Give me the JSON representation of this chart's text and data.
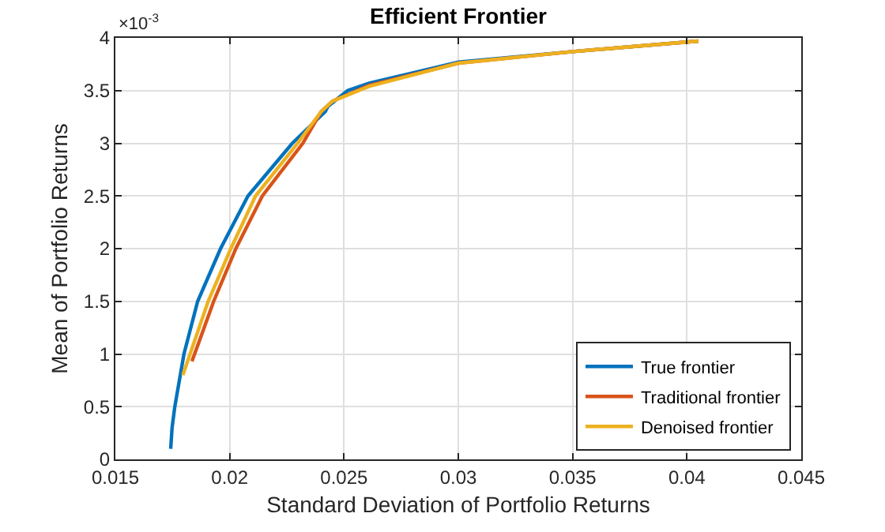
{
  "chart_data": {
    "type": "line",
    "title": "Efficient Frontier",
    "xlabel": "Standard Deviation of Portfolio Returns",
    "ylabel": "Mean of Portfolio Returns",
    "annotations": [
      "×10$^{-3}$"
    ],
    "series": [
      {
        "name": "True frontier",
        "color": "#0072bd",
        "x": [
          0.01742,
          0.01748,
          0.0176,
          0.018,
          0.0186,
          0.0196,
          0.0208,
          0.02274,
          0.02418,
          0.0243,
          0.02516,
          0.0261,
          0.03,
          0.035,
          0.0405
        ],
        "values": [
          0.1,
          0.3,
          0.5,
          1.0,
          1.5,
          2.0,
          2.5,
          3.0,
          3.3,
          3.35,
          3.5,
          3.57,
          3.77,
          3.87,
          3.97
        ]
      },
      {
        "name": "Traditional frontier",
        "color": "#d95319",
        "x": [
          0.01835,
          0.0193,
          0.02027,
          0.02143,
          0.0232,
          0.024,
          0.0245,
          0.0261,
          0.03,
          0.035,
          0.0405
        ],
        "values": [
          0.93,
          1.5,
          2.0,
          2.5,
          3.0,
          3.3,
          3.4,
          3.55,
          3.76,
          3.87,
          3.97
        ]
      },
      {
        "name": "Denoised frontier",
        "color": "#edb120",
        "x": [
          0.01795,
          0.01906,
          0.02005,
          0.02113,
          0.02297,
          0.024,
          0.0245,
          0.0261,
          0.03,
          0.035,
          0.0405
        ],
        "values": [
          0.8,
          1.5,
          2.0,
          2.5,
          3.0,
          3.3,
          3.4,
          3.54,
          3.76,
          3.87,
          3.97
        ]
      }
    ],
    "xlim": [
      0.015,
      0.045
    ],
    "xticks": [
      0.015,
      0.02,
      0.025,
      0.03,
      0.035,
      0.04,
      0.045
    ],
    "ylim": [
      0,
      4
    ],
    "yticks": [
      0,
      0.5,
      1,
      1.5,
      2,
      2.5,
      3,
      3.5,
      4
    ],
    "grid": true,
    "legend": "bottom right",
    "line_style": "solid",
    "marker": "none"
  }
}
